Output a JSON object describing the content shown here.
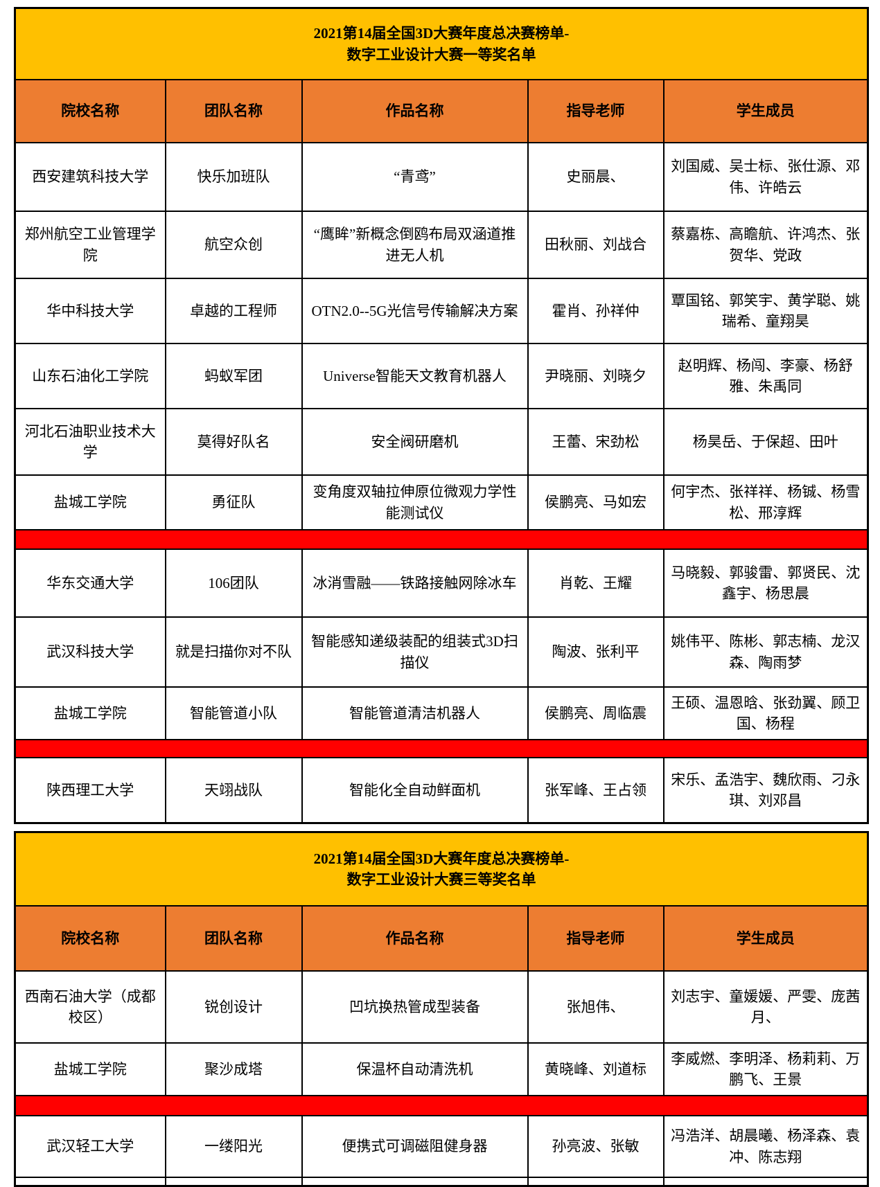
{
  "colors": {
    "title_bg": "#FFC000",
    "header_bg": "#ED7D31",
    "highlight_bar": "#FF0000",
    "border": "#000000",
    "text": "#000000"
  },
  "columns": [
    "院校名称",
    "团队名称",
    "作品名称",
    "指导老师",
    "学生成员"
  ],
  "tables": [
    {
      "title_line1": "2021第14届全国3D大赛年度总决赛榜单-",
      "title_line2": "数字工业设计大赛一等奖名单",
      "rows": [
        {
          "school": "西安建筑科技大学",
          "team": "快乐加班队",
          "work": "“青鸢”",
          "teachers": "史丽晨、",
          "students": "刘国威、吴士标、张仕源、邓伟、许皓云"
        },
        {
          "school": "郑州航空工业管理学院",
          "team": "航空众创",
          "work": "“鹰眸”新概念倒鸥布局双涵道推进无人机",
          "teachers": "田秋丽、刘战合",
          "students": "蔡嘉栋、高瞻航、许鸿杰、张贺华、党政"
        },
        {
          "school": "华中科技大学",
          "team": "卓越的工程师",
          "work": "OTN2.0--5G光信号传输解决方案",
          "teachers": "霍肖、孙祥仲",
          "students": "覃国铭、郭笑宇、黄学聪、姚瑞希、童翔昊"
        },
        {
          "school": "山东石油化工学院",
          "team": "蚂蚁军团",
          "work": "Universe智能天文教育机器人",
          "teachers": "尹晓丽、刘晓夕",
          "students": "赵明辉、杨闯、李豪、杨舒雅、朱禹同"
        },
        {
          "school": "河北石油职业技术大学",
          "team": "莫得好队名",
          "work": "安全阀研磨机",
          "teachers": "王蕾、宋劲松",
          "students": "杨昊岳、于保超、田叶"
        },
        {
          "school": "盐城工学院",
          "team": "勇征队",
          "work": "变角度双轴拉伸原位微观力学性能测试仪",
          "teachers": "侯鹏亮、马如宏",
          "students": "何宇杰、张祥祥、杨铖、杨雪松、邢淳辉",
          "highlight_after": true
        },
        {
          "school": "华东交通大学",
          "team": "106团队",
          "work": "冰消雪融——铁路接触网除冰车",
          "teachers": "肖乾、王耀",
          "students": "马晓毅、郭骏雷、郭贤民、沈鑫宇、杨思晨"
        },
        {
          "school": "武汉科技大学",
          "team": "就是扫描你对不队",
          "work": "智能感知递级装配的组装式3D扫描仪",
          "teachers": "陶波、张利平",
          "students": "姚伟平、陈彬、郭志楠、龙汉森、陶雨梦"
        },
        {
          "school": "盐城工学院",
          "team": "智能管道小队",
          "work": "智能管道清洁机器人",
          "teachers": "侯鹏亮、周临震",
          "students": "王硕、温恩晗、张劲翼、顾卫国、杨程",
          "highlight_after": true
        },
        {
          "school": "陕西理工大学",
          "team": "天翊战队",
          "work": "智能化全自动鲜面机",
          "teachers": "张军峰、王占领",
          "students": "宋乐、孟浩宇、魏欣雨、刁永琪、刘邓昌"
        }
      ]
    },
    {
      "title_line1": "2021第14届全国3D大赛年度总决赛榜单-",
      "title_line2": "数字工业设计大赛三等奖名单",
      "rows": [
        {
          "school": "西南石油大学（成都校区）",
          "team": "锐创设计",
          "work": "凹坑换热管成型装备",
          "teachers": "张旭伟、",
          "students": "刘志宇、童媛媛、严雯、庞茜月、"
        },
        {
          "school": "盐城工学院",
          "team": "聚沙成塔",
          "work": "保温杯自动清洗机",
          "teachers": "黄晓峰、刘道标",
          "students": "李威燃、李明泽、杨莉莉、万鹏飞、王景",
          "highlight_after": true
        },
        {
          "school": "武汉轻工大学",
          "team": "一缕阳光",
          "work": "便携式可调磁阻健身器",
          "teachers": "孙亮波、张敏",
          "students": "冯浩洋、胡晨曦、杨泽森、袁冲、陈志翔"
        }
      ],
      "partial_row_after": true
    }
  ]
}
